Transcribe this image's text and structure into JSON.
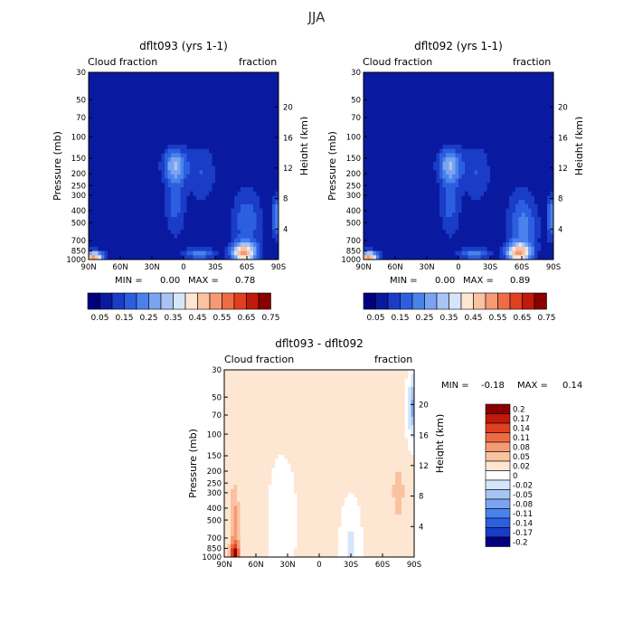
{
  "figure_title": "JJA",
  "chart_data": [
    {
      "type": "heatmap",
      "title": "dflt093 (yrs 1-1)",
      "subtitle_left": "Cloud fraction",
      "subtitle_right": "fraction",
      "ylabel": "Pressure (mb)",
      "ylabel_right": "Height (km)",
      "x_ticks": [
        "90N",
        "60N",
        "30N",
        "0",
        "30S",
        "60S",
        "90S"
      ],
      "y_ticks": [
        "30",
        "50",
        "70",
        "100",
        "150",
        "200",
        "250",
        "300",
        "400",
        "500",
        "700",
        "850",
        "1000"
      ],
      "y_right_ticks": [
        "20",
        "16",
        "12",
        "8",
        "4"
      ],
      "min_label": "MIN =",
      "min": "0.00",
      "max_label": "MAX =",
      "max": "0.78",
      "colorbar_labels": [
        "0.05",
        "0.15",
        "0.25",
        "0.35",
        "0.45",
        "0.55",
        "0.65",
        "0.75"
      ],
      "colorbar_colors": [
        "#00007f",
        "#0a1aa0",
        "#1a3cc6",
        "#2c5fe0",
        "#4a82ec",
        "#7aa4f1",
        "#a8c4f5",
        "#d6e6fa",
        "#fde6d2",
        "#fac2a0",
        "#f59a74",
        "#ee6b45",
        "#e0401f",
        "#bf1a0a",
        "#8a0000"
      ],
      "lat_range": [
        90,
        -90
      ],
      "pressure_range": [
        30,
        1000
      ],
      "colorbar_range": [
        0,
        0.8
      ]
    },
    {
      "type": "heatmap",
      "title": "dflt092 (yrs 1-1)",
      "subtitle_left": "Cloud fraction",
      "subtitle_right": "fraction",
      "ylabel": "Pressure (mb)",
      "ylabel_right": "Height (km)",
      "x_ticks": [
        "90N",
        "60N",
        "30N",
        "0",
        "30S",
        "60S",
        "90S"
      ],
      "y_ticks": [
        "30",
        "50",
        "70",
        "100",
        "150",
        "200",
        "250",
        "300",
        "400",
        "500",
        "700",
        "850",
        "1000"
      ],
      "y_right_ticks": [
        "20",
        "16",
        "12",
        "8",
        "4"
      ],
      "min_label": "MIN =",
      "min": "0.00",
      "max_label": "MAX =",
      "max": "0.89",
      "colorbar_labels": [
        "0.05",
        "0.15",
        "0.25",
        "0.35",
        "0.45",
        "0.55",
        "0.65",
        "0.75"
      ],
      "colorbar_colors": [
        "#00007f",
        "#0a1aa0",
        "#1a3cc6",
        "#2c5fe0",
        "#4a82ec",
        "#7aa4f1",
        "#a8c4f5",
        "#d6e6fa",
        "#fde6d2",
        "#fac2a0",
        "#f59a74",
        "#ee6b45",
        "#e0401f",
        "#bf1a0a",
        "#8a0000"
      ],
      "lat_range": [
        90,
        -90
      ],
      "pressure_range": [
        30,
        1000
      ],
      "colorbar_range": [
        0,
        0.8
      ]
    },
    {
      "type": "heatmap",
      "title": "dflt093 - dflt092",
      "subtitle_left": "Cloud fraction",
      "subtitle_right": "fraction",
      "ylabel": "Pressure (mb)",
      "ylabel_right": "Height (km)",
      "x_ticks": [
        "90N",
        "60N",
        "30N",
        "0",
        "30S",
        "60S",
        "90S"
      ],
      "y_ticks": [
        "30",
        "50",
        "70",
        "100",
        "150",
        "200",
        "250",
        "300",
        "400",
        "500",
        "700",
        "850",
        "1000"
      ],
      "y_right_ticks": [
        "20",
        "16",
        "12",
        "8",
        "4"
      ],
      "min_label": "MIN =",
      "min": "-0.18",
      "max_label": "MAX =",
      "max": "0.14",
      "colorbar_labels": [
        "0.2",
        "0.17",
        "0.14",
        "0.11",
        "0.08",
        "0.05",
        "0.02",
        "0",
        "-0.02",
        "-0.05",
        "-0.08",
        "-0.11",
        "-0.14",
        "-0.17",
        "-0.2"
      ],
      "colorbar_colors": [
        "#8a0000",
        "#bf1a0a",
        "#e0401f",
        "#ee6b45",
        "#f59a74",
        "#fac2a0",
        "#fde6d2",
        "#ffffff",
        "#d6e6fa",
        "#a8c4f5",
        "#7aa4f1",
        "#4a82ec",
        "#2c5fe0",
        "#1a3cc6",
        "#00007f"
      ],
      "lat_range": [
        90,
        -90
      ],
      "pressure_range": [
        30,
        1000
      ],
      "colorbar_range": [
        -0.2,
        0.2
      ]
    }
  ]
}
